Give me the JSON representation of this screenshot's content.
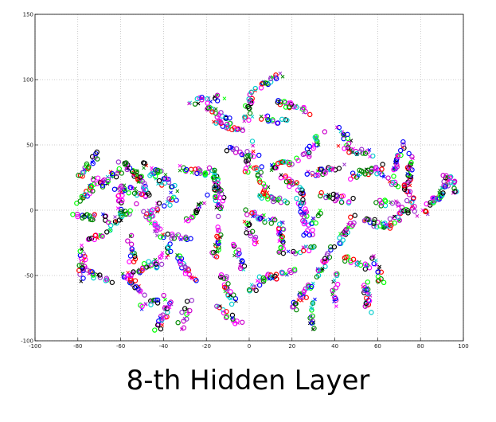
{
  "caption": "8-th Hidden Layer",
  "chart_data": {
    "type": "scatter",
    "title": "",
    "xlabel": "",
    "ylabel": "",
    "xlim": [
      -100,
      100
    ],
    "ylim": [
      -100,
      150
    ],
    "xticks": [
      -100,
      -80,
      -60,
      -40,
      -20,
      0,
      20,
      40,
      60,
      80,
      100
    ],
    "yticks": [
      -100,
      -50,
      0,
      50,
      100,
      150
    ],
    "grid": true,
    "legend": "none",
    "colors": [
      "#ff00ff",
      "#00cccc",
      "#008800",
      "#00ff00",
      "#0000ff",
      "#000000",
      "#ff0000",
      "#9933cc",
      "#cc00cc"
    ],
    "marker_styles": [
      "o",
      "x"
    ],
    "clusters": [
      {
        "x": -75,
        "y": 35
      },
      {
        "x": -75,
        "y": 15
      },
      {
        "x": -75,
        "y": -5
      },
      {
        "x": -70,
        "y": -20
      },
      {
        "x": -78,
        "y": -40
      },
      {
        "x": -72,
        "y": -50
      },
      {
        "x": -65,
        "y": 25
      },
      {
        "x": -60,
        "y": 10
      },
      {
        "x": -60,
        "y": -5
      },
      {
        "x": -55,
        "y": 30
      },
      {
        "x": -55,
        "y": 15
      },
      {
        "x": -55,
        "y": -30
      },
      {
        "x": -55,
        "y": -55
      },
      {
        "x": -50,
        "y": 20
      },
      {
        "x": -50,
        "y": -45
      },
      {
        "x": -45,
        "y": 28
      },
      {
        "x": -45,
        "y": -10
      },
      {
        "x": -45,
        "y": -70
      },
      {
        "x": -40,
        "y": 25
      },
      {
        "x": -40,
        "y": 5
      },
      {
        "x": -40,
        "y": -35
      },
      {
        "x": -40,
        "y": -80
      },
      {
        "x": -35,
        "y": -20
      },
      {
        "x": -30,
        "y": -45
      },
      {
        "x": -30,
        "y": -80
      },
      {
        "x": -25,
        "y": 0
      },
      {
        "x": -25,
        "y": 30
      },
      {
        "x": -20,
        "y": 85
      },
      {
        "x": -15,
        "y": 75
      },
      {
        "x": -10,
        "y": 65
      },
      {
        "x": -15,
        "y": 20
      },
      {
        "x": -15,
        "y": 10
      },
      {
        "x": -15,
        "y": -25
      },
      {
        "x": -10,
        "y": -60
      },
      {
        "x": -10,
        "y": -80
      },
      {
        "x": -5,
        "y": 45
      },
      {
        "x": -5,
        "y": -35
      },
      {
        "x": 0,
        "y": 80
      },
      {
        "x": 0,
        "y": 40
      },
      {
        "x": 0,
        "y": -15
      },
      {
        "x": 5,
        "y": 25
      },
      {
        "x": 5,
        "y": -5
      },
      {
        "x": 5,
        "y": -55
      },
      {
        "x": 10,
        "y": 100
      },
      {
        "x": 10,
        "y": 70
      },
      {
        "x": 10,
        "y": 10
      },
      {
        "x": 15,
        "y": 35
      },
      {
        "x": 15,
        "y": -20
      },
      {
        "x": 15,
        "y": -50
      },
      {
        "x": 20,
        "y": 80
      },
      {
        "x": 20,
        "y": 20
      },
      {
        "x": 25,
        "y": 0
      },
      {
        "x": 25,
        "y": -30
      },
      {
        "x": 25,
        "y": -65
      },
      {
        "x": 30,
        "y": 50
      },
      {
        "x": 30,
        "y": -10
      },
      {
        "x": 30,
        "y": -80
      },
      {
        "x": 35,
        "y": 30
      },
      {
        "x": 35,
        "y": -40
      },
      {
        "x": 40,
        "y": 10
      },
      {
        "x": 40,
        "y": -60
      },
      {
        "x": 45,
        "y": 55
      },
      {
        "x": 45,
        "y": -15
      },
      {
        "x": 50,
        "y": 45
      },
      {
        "x": 50,
        "y": -40
      },
      {
        "x": 55,
        "y": 30
      },
      {
        "x": 55,
        "y": -65
      },
      {
        "x": 60,
        "y": -10
      },
      {
        "x": 60,
        "y": -45
      },
      {
        "x": 65,
        "y": 25
      },
      {
        "x": 65,
        "y": 5
      },
      {
        "x": 70,
        "y": 40
      },
      {
        "x": 70,
        "y": -5
      },
      {
        "x": 75,
        "y": 30
      },
      {
        "x": 75,
        "y": 10
      },
      {
        "x": 85,
        "y": 5
      },
      {
        "x": 90,
        "y": 15
      },
      {
        "x": 95,
        "y": 20
      }
    ]
  }
}
